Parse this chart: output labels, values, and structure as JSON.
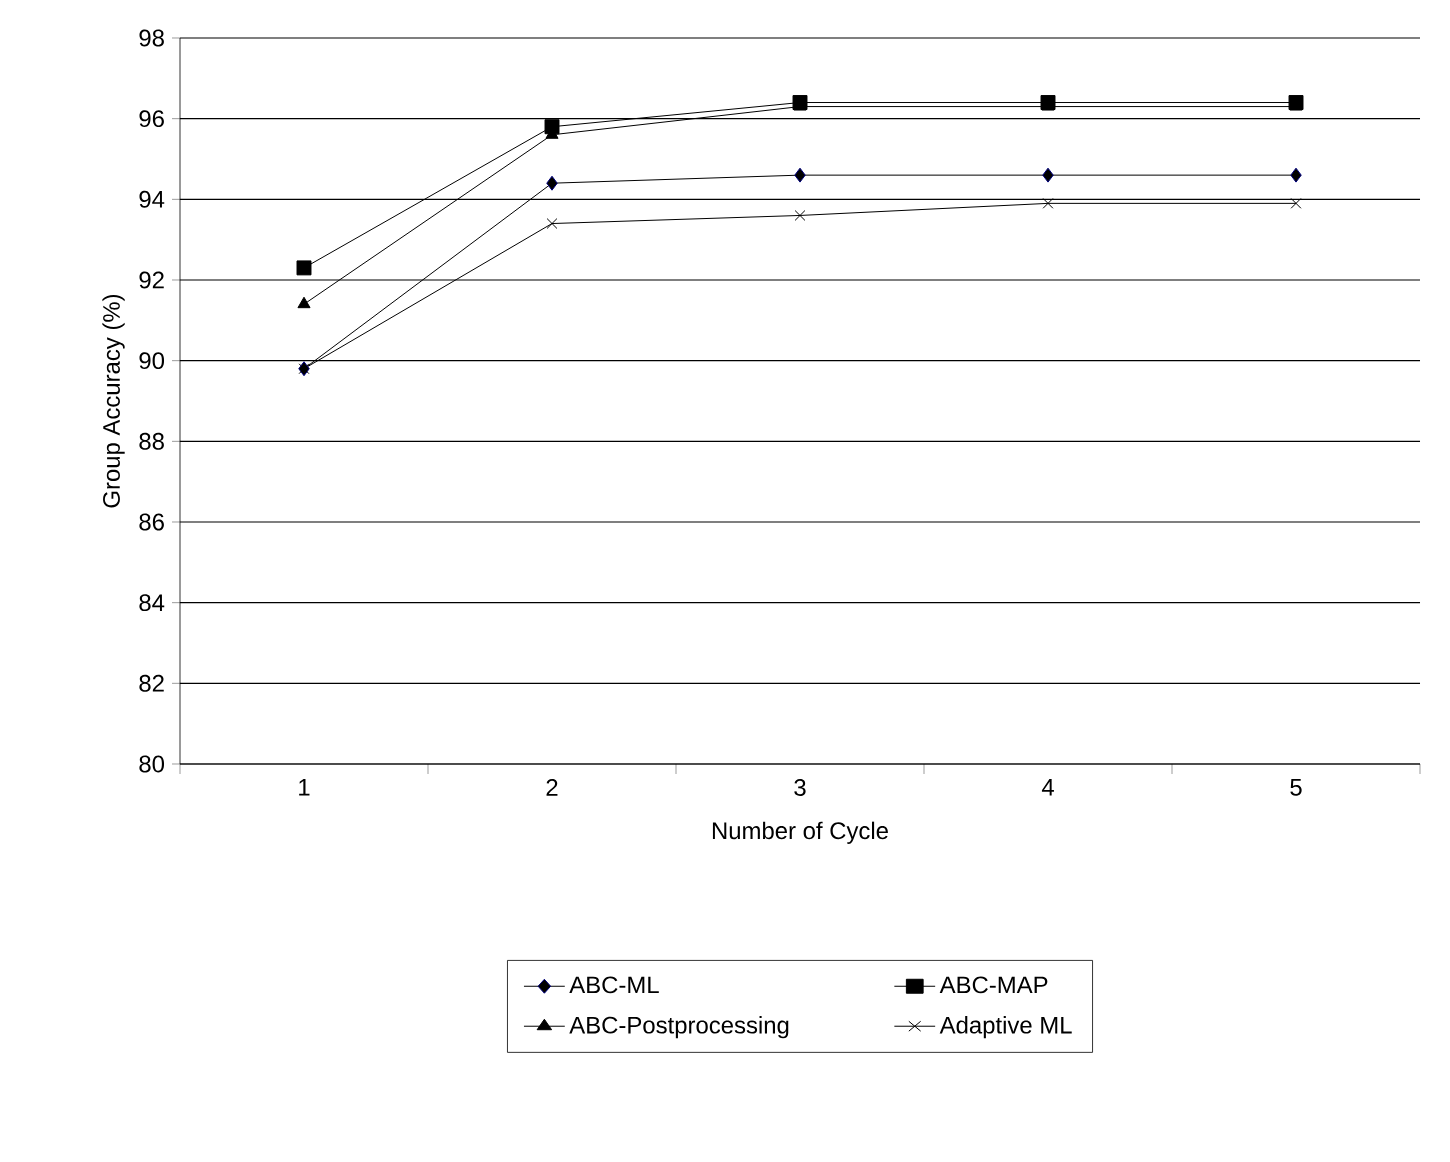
{
  "chart_data": {
    "type": "line",
    "xlabel": "Number of Cycle",
    "ylabel": "Group Accuracy (%)",
    "categories": [
      "1",
      "2",
      "3",
      "4",
      "5"
    ],
    "ylim": [
      80,
      98
    ],
    "yticks": [
      80,
      82,
      84,
      86,
      88,
      90,
      92,
      94,
      96,
      98
    ],
    "grid": "y",
    "legend": "bottom",
    "series": [
      {
        "name": "ABC-ML",
        "color": "#000080",
        "marker": "diamond",
        "values": [
          89.8,
          94.4,
          94.6,
          94.6,
          94.6
        ]
      },
      {
        "name": "ABC-MAP",
        "color": "#000000",
        "marker": "square",
        "values": [
          92.3,
          95.8,
          96.4,
          96.4,
          96.4
        ]
      },
      {
        "name": "ABC-Postprocessing",
        "color": "#000000",
        "marker": "triangle",
        "values": [
          91.4,
          95.6,
          96.3,
          96.3,
          96.3
        ]
      },
      {
        "name": "Adaptive ML",
        "color": "#000000",
        "marker": "cross",
        "values": [
          89.8,
          93.4,
          93.6,
          93.9,
          93.9
        ]
      }
    ]
  }
}
